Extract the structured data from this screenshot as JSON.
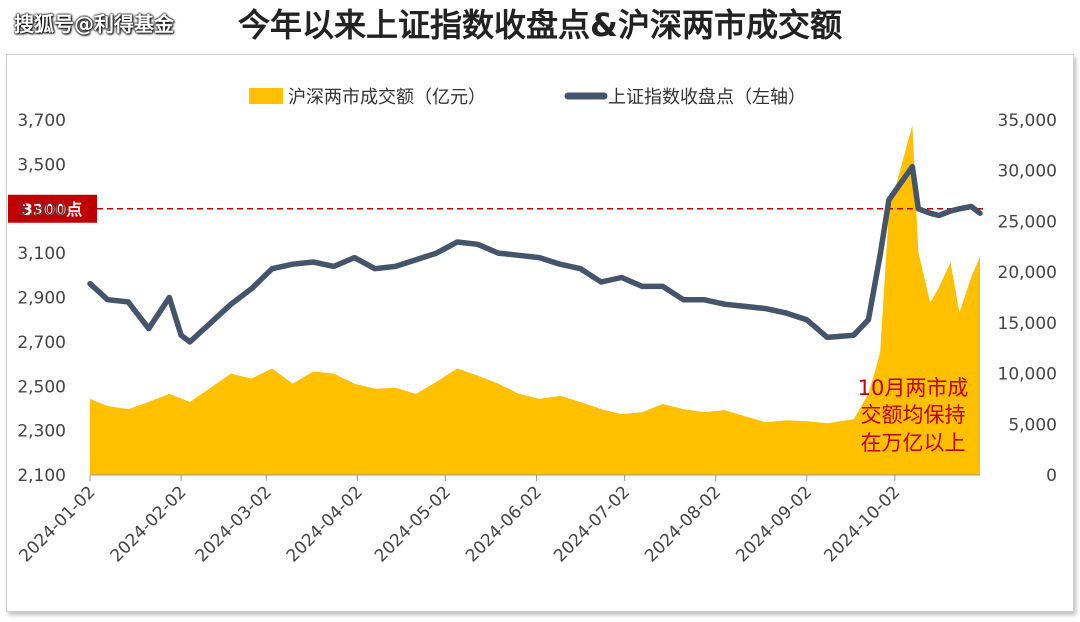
{
  "watermark": "搜狐号@利得基金",
  "chart_data": {
    "type": "area+line",
    "title": "今年以来上证指数收盘点&沪深两市成交额",
    "series": [
      {
        "name": "沪深两市成交额（亿元）",
        "type": "area",
        "axis": "right",
        "color": "#FFC000",
        "x": [
          "2024-01-02",
          "2024-01-08",
          "2024-01-15",
          "2024-01-22",
          "2024-01-29",
          "2024-02-05",
          "2024-02-19",
          "2024-02-26",
          "2024-03-04",
          "2024-03-11",
          "2024-03-18",
          "2024-03-25",
          "2024-04-01",
          "2024-04-08",
          "2024-04-15",
          "2024-04-22",
          "2024-04-29",
          "2024-05-06",
          "2024-05-13",
          "2024-05-20",
          "2024-05-27",
          "2024-06-03",
          "2024-06-10",
          "2024-06-17",
          "2024-06-24",
          "2024-07-01",
          "2024-07-08",
          "2024-07-15",
          "2024-07-22",
          "2024-07-29",
          "2024-08-05",
          "2024-08-12",
          "2024-08-19",
          "2024-08-26",
          "2024-09-02",
          "2024-09-09",
          "2024-09-18",
          "2024-09-23",
          "2024-09-27",
          "2024-09-30",
          "2024-10-08",
          "2024-10-10",
          "2024-10-14",
          "2024-10-17",
          "2024-10-21",
          "2024-10-24",
          "2024-10-28",
          "2024-10-31"
        ],
        "values": [
          7500,
          6800,
          6500,
          7200,
          8000,
          7200,
          10000,
          9500,
          10500,
          9000,
          10200,
          10000,
          9000,
          8500,
          8600,
          8000,
          9200,
          10500,
          9800,
          9000,
          8000,
          7500,
          7800,
          7200,
          6500,
          6000,
          6200,
          7000,
          6500,
          6200,
          6400,
          5800,
          5200,
          5400,
          5300,
          5100,
          5500,
          8000,
          12000,
          26000,
          34500,
          22000,
          17000,
          18500,
          21000,
          16000,
          19500,
          21500
        ]
      },
      {
        "name": "上证指数收盘点（左轴）",
        "type": "line",
        "axis": "left",
        "color": "#44546A",
        "x": [
          "2024-01-02",
          "2024-01-08",
          "2024-01-15",
          "2024-01-22",
          "2024-01-29",
          "2024-02-02",
          "2024-02-05",
          "2024-02-19",
          "2024-02-26",
          "2024-03-04",
          "2024-03-11",
          "2024-03-18",
          "2024-03-25",
          "2024-04-01",
          "2024-04-08",
          "2024-04-15",
          "2024-04-22",
          "2024-04-29",
          "2024-05-06",
          "2024-05-13",
          "2024-05-20",
          "2024-05-27",
          "2024-06-03",
          "2024-06-10",
          "2024-06-17",
          "2024-06-24",
          "2024-07-01",
          "2024-07-08",
          "2024-07-15",
          "2024-07-22",
          "2024-07-29",
          "2024-08-05",
          "2024-08-12",
          "2024-08-19",
          "2024-08-26",
          "2024-09-02",
          "2024-09-09",
          "2024-09-18",
          "2024-09-23",
          "2024-09-27",
          "2024-09-30",
          "2024-10-08",
          "2024-10-10",
          "2024-10-14",
          "2024-10-17",
          "2024-10-21",
          "2024-10-24",
          "2024-10-28",
          "2024-10-31"
        ],
        "values": [
          2962,
          2890,
          2880,
          2760,
          2900,
          2730,
          2700,
          2870,
          2940,
          3030,
          3050,
          3060,
          3040,
          3080,
          3030,
          3040,
          3070,
          3100,
          3150,
          3140,
          3100,
          3090,
          3080,
          3050,
          3030,
          2970,
          2990,
          2950,
          2950,
          2890,
          2890,
          2870,
          2860,
          2850,
          2830,
          2800,
          2720,
          2730,
          2800,
          3090,
          3340,
          3490,
          3300,
          3280,
          3270,
          3290,
          3300,
          3310,
          3280
        ]
      }
    ],
    "y_left": {
      "ylim": [
        2100,
        3700
      ],
      "ticks": [
        "3,700",
        "3,500",
        "3,300",
        "3,100",
        "2,900",
        "2,700",
        "2,500",
        "2,300",
        "2,100"
      ]
    },
    "y_right": {
      "ylim": [
        0,
        35000
      ],
      "ticks": [
        "35,000",
        "30,000",
        "25,000",
        "20,000",
        "15,000",
        "10,000",
        "5,000",
        "0"
      ]
    },
    "x_ticks": [
      "2024-01-02",
      "2024-02-02",
      "2024-03-02",
      "2024-04-02",
      "2024-05-02",
      "2024-06-02",
      "2024-07-02",
      "2024-08-02",
      "2024-09-02",
      "2024-10-02"
    ],
    "reference_line": {
      "value": 3300,
      "axis": "left",
      "label": "3300点",
      "color": "#C00000"
    },
    "annotation": [
      "10月两市成",
      "交额均保持",
      "在万亿以上"
    ],
    "legend": "top"
  }
}
